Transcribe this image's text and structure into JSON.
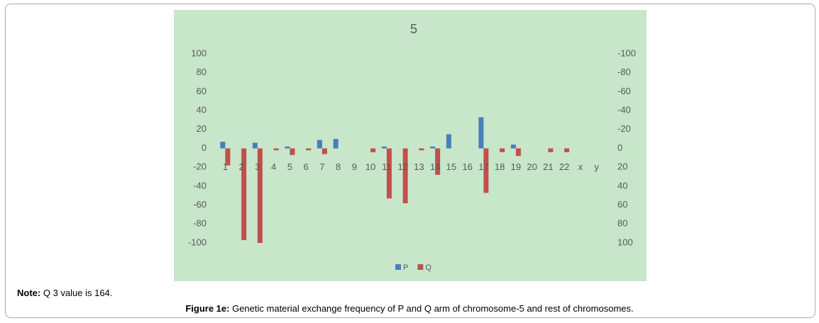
{
  "chart_data": {
    "type": "bar",
    "title": "5",
    "categories": [
      "1",
      "2",
      "3",
      "4",
      "5",
      "6",
      "7",
      "8",
      "9",
      "10",
      "11",
      "12",
      "13",
      "14",
      "15",
      "16",
      "17",
      "18",
      "19",
      "20",
      "21",
      "22",
      "x",
      "y"
    ],
    "series": [
      {
        "name": "P",
        "color": "#4a7ebb",
        "values": [
          7,
          0,
          6,
          0,
          2,
          0,
          9,
          10,
          0,
          0,
          2,
          0,
          0,
          2,
          15,
          0,
          33,
          0,
          4,
          0,
          0,
          0,
          0,
          0
        ]
      },
      {
        "name": "Q",
        "color": "#c0504d",
        "values": [
          -18,
          -97,
          -100,
          -2,
          -7,
          -2,
          -6,
          0,
          0,
          -4,
          -53,
          -58,
          -2,
          -28,
          0,
          0,
          -47,
          -4,
          -8,
          0,
          -4,
          -4,
          0,
          0
        ]
      }
    ],
    "ylim": [
      -100,
      100
    ],
    "yticks": [
      -100,
      -80,
      -60,
      -40,
      -20,
      0,
      20,
      40,
      60,
      80,
      100
    ],
    "y2lim": [
      100,
      -100
    ],
    "y2ticks": [
      100,
      80,
      60,
      40,
      20,
      0,
      -20,
      -40,
      -60,
      -80,
      -100
    ],
    "grid": false,
    "legend": "bottom"
  },
  "note": {
    "label": "Note:",
    "text": "Q 3 value is 164."
  },
  "caption": {
    "label": "Figure 1e:",
    "text": "Genetic material exchange frequency of P and Q arm of chromosome-5 and rest of chromosomes."
  }
}
